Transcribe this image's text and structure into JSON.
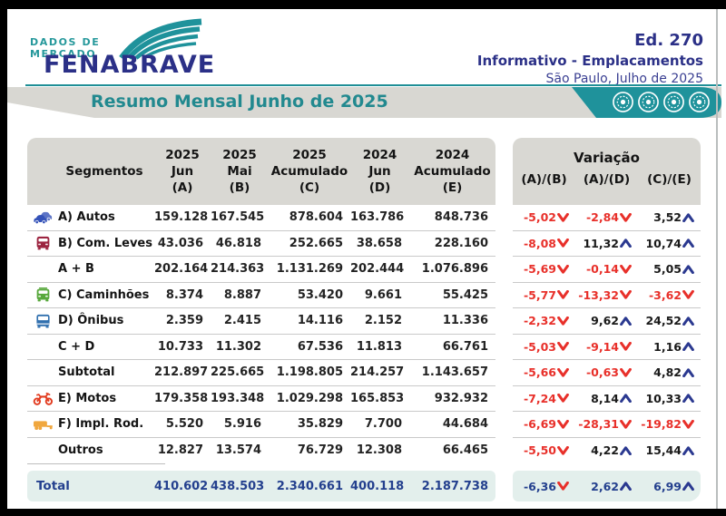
{
  "header": {
    "logo": {
      "tagline_line1": "DADOS DE",
      "tagline_line2": "MERCADO",
      "brand": "FENABRAVE"
    },
    "edition": "Ed. 270",
    "subtitle": "Informativo - Emplacamentos",
    "location_date": "São Paulo, Julho de 2025"
  },
  "banner": {
    "title": "Resumo Mensal Junho de 2025",
    "wheel_icons": 4
  },
  "colors": {
    "teal": "#1f929b",
    "navy": "#2b3087",
    "red": "#e8302a",
    "arrow_blue": "#2b3990",
    "total_text": "#24408e",
    "header_gray": "#d9d8d3",
    "total_band": "#e3efec"
  },
  "table": {
    "segment_header": "Segmentos",
    "columns": [
      {
        "year": "2025",
        "period": "Jun",
        "key": "(A)"
      },
      {
        "year": "2025",
        "period": "Mai",
        "key": "(B)"
      },
      {
        "year": "2025",
        "period": "Acumulado",
        "key": "(C)"
      },
      {
        "year": "2024",
        "period": "Jun",
        "key": "(D)"
      },
      {
        "year": "2024",
        "period": "Acumulado",
        "key": "(E)"
      }
    ],
    "variation": {
      "title": "Variação",
      "columns": [
        "(A)/(B)",
        "(A)/(D)",
        "(C)/(E)"
      ]
    },
    "rows": [
      {
        "icon": "cars-icon",
        "icon_color": "#3452b8",
        "label": "A) Autos",
        "values": [
          "159.128",
          "167.545",
          "878.604",
          "163.786",
          "848.736"
        ],
        "variations": [
          {
            "value": "-5,02",
            "direction": "down"
          },
          {
            "value": "-2,84",
            "direction": "down"
          },
          {
            "value": "3,52",
            "direction": "up"
          }
        ]
      },
      {
        "icon": "van-icon",
        "icon_color": "#9c2440",
        "label": "B) Com. Leves",
        "values": [
          "43.036",
          "46.818",
          "252.665",
          "38.658",
          "228.160"
        ],
        "variations": [
          {
            "value": "-8,08",
            "direction": "down"
          },
          {
            "value": "11,32",
            "direction": "up"
          },
          {
            "value": "10,74",
            "direction": "up"
          }
        ]
      },
      {
        "icon": null,
        "icon_color": null,
        "label": "A + B",
        "values": [
          "202.164",
          "214.363",
          "1.131.269",
          "202.444",
          "1.076.896"
        ],
        "variations": [
          {
            "value": "-5,69",
            "direction": "down"
          },
          {
            "value": "-0,14",
            "direction": "down"
          },
          {
            "value": "5,05",
            "direction": "up"
          }
        ]
      },
      {
        "icon": "truck-icon",
        "icon_color": "#58a83c",
        "label": "C) Caminhões",
        "values": [
          "8.374",
          "8.887",
          "53.420",
          "9.661",
          "55.425"
        ],
        "variations": [
          {
            "value": "-5,77",
            "direction": "down"
          },
          {
            "value": "-13,32",
            "direction": "down"
          },
          {
            "value": "-3,62",
            "direction": "down"
          }
        ]
      },
      {
        "icon": "bus-icon",
        "icon_color": "#2f6fae",
        "label": "D) Ônibus",
        "values": [
          "2.359",
          "2.415",
          "14.116",
          "2.152",
          "11.336"
        ],
        "variations": [
          {
            "value": "-2,32",
            "direction": "down"
          },
          {
            "value": "9,62",
            "direction": "up"
          },
          {
            "value": "24,52",
            "direction": "up"
          }
        ]
      },
      {
        "icon": null,
        "icon_color": null,
        "label": "C + D",
        "values": [
          "10.733",
          "11.302",
          "67.536",
          "11.813",
          "66.761"
        ],
        "variations": [
          {
            "value": "-5,03",
            "direction": "down"
          },
          {
            "value": "-9,14",
            "direction": "down"
          },
          {
            "value": "1,16",
            "direction": "up"
          }
        ]
      },
      {
        "icon": null,
        "icon_color": null,
        "label": "Subtotal",
        "values": [
          "212.897",
          "225.665",
          "1.198.805",
          "214.257",
          "1.143.657"
        ],
        "variations": [
          {
            "value": "-5,66",
            "direction": "down"
          },
          {
            "value": "-0,63",
            "direction": "down"
          },
          {
            "value": "4,82",
            "direction": "up"
          }
        ]
      },
      {
        "icon": "motorcycle-icon",
        "icon_color": "#e23c20",
        "label": "E) Motos",
        "values": [
          "179.358",
          "193.348",
          "1.029.298",
          "165.853",
          "932.932"
        ],
        "variations": [
          {
            "value": "-7,24",
            "direction": "down"
          },
          {
            "value": "8,14",
            "direction": "up"
          },
          {
            "value": "10,33",
            "direction": "up"
          }
        ]
      },
      {
        "icon": "trailer-icon",
        "icon_color": "#f0a73e",
        "label": "F) Impl. Rod.",
        "values": [
          "5.520",
          "5.916",
          "35.829",
          "7.700",
          "44.684"
        ],
        "variations": [
          {
            "value": "-6,69",
            "direction": "down"
          },
          {
            "value": "-28,31",
            "direction": "down"
          },
          {
            "value": "-19,82",
            "direction": "down"
          }
        ]
      },
      {
        "icon": null,
        "icon_color": null,
        "label": "Outros",
        "values": [
          "12.827",
          "13.574",
          "76.729",
          "12.308",
          "66.465"
        ],
        "variations": [
          {
            "value": "-5,50",
            "direction": "down"
          },
          {
            "value": "4,22",
            "direction": "up"
          },
          {
            "value": "15,44",
            "direction": "up"
          }
        ]
      }
    ],
    "total": {
      "label": "Total",
      "values": [
        "410.602",
        "438.503",
        "2.340.661",
        "400.118",
        "2.187.738"
      ],
      "variations": [
        {
          "value": "-6,36",
          "direction": "down"
        },
        {
          "value": "2,62",
          "direction": "up"
        },
        {
          "value": "6,99",
          "direction": "up"
        }
      ]
    }
  }
}
